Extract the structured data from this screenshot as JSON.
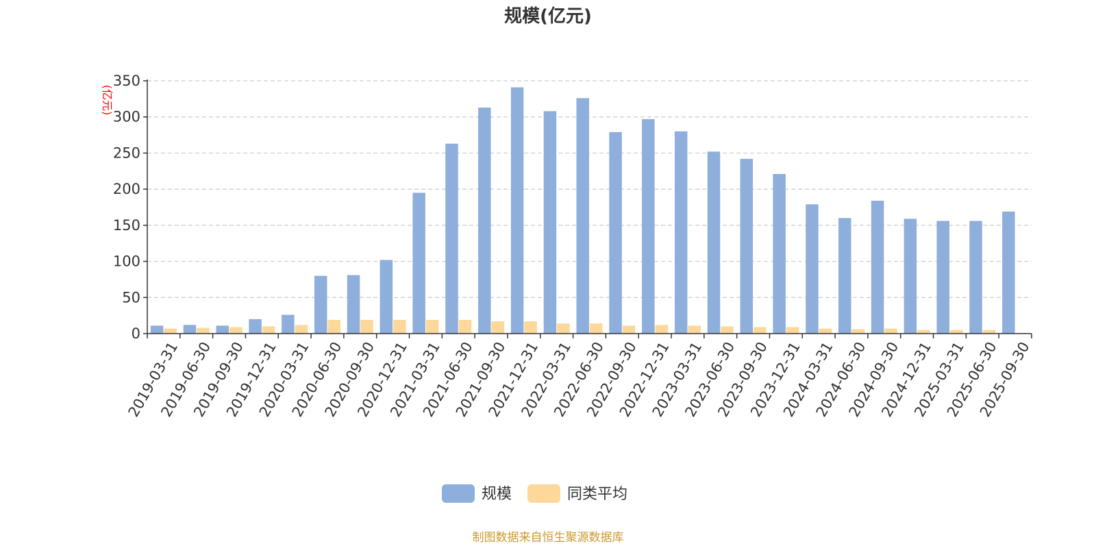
{
  "chart_data": {
    "type": "bar",
    "title": "规模(亿元)",
    "xlabel": "",
    "ylabel": "(亿元)",
    "ylim": [
      0,
      350
    ],
    "yticks": [
      0,
      50,
      100,
      150,
      200,
      250,
      300,
      350
    ],
    "grid": true,
    "legend_position": "bottom-center",
    "categories": [
      "2019-03-31",
      "2019-06-30",
      "2019-09-30",
      "2019-12-31",
      "2020-03-31",
      "2020-06-30",
      "2020-09-30",
      "2020-12-31",
      "2021-03-31",
      "2021-06-30",
      "2021-09-30",
      "2021-12-31",
      "2022-03-31",
      "2022-06-30",
      "2022-09-30",
      "2022-12-31",
      "2023-03-31",
      "2023-06-30",
      "2023-09-30",
      "2023-12-31",
      "2024-03-31",
      "2024-06-30",
      "2024-09-30",
      "2024-12-31",
      "2025-03-31",
      "2025-06-30",
      "2025-09-30"
    ],
    "series": [
      {
        "name": "规模",
        "color": "#8eaedc",
        "values": [
          11,
          12,
          11,
          20,
          26,
          80,
          81,
          102,
          195,
          263,
          313,
          341,
          308,
          326,
          279,
          297,
          280,
          252,
          242,
          221,
          179,
          160,
          184,
          159,
          156,
          156,
          169
        ]
      },
      {
        "name": "同类平均",
        "color": "#fdd89a",
        "values": [
          7,
          8,
          9,
          10,
          12,
          19,
          19,
          19,
          19,
          19,
          17,
          17,
          14,
          14,
          11,
          12,
          11,
          10,
          9,
          9,
          7,
          6,
          7,
          5,
          5,
          5,
          null
        ]
      }
    ]
  },
  "source_note": "制图数据来自恒生聚源数据库",
  "colors": {
    "axis": "#333333",
    "grid": "#cccccc",
    "ylabel": "#ff0000",
    "source": "#cc9a2e"
  }
}
